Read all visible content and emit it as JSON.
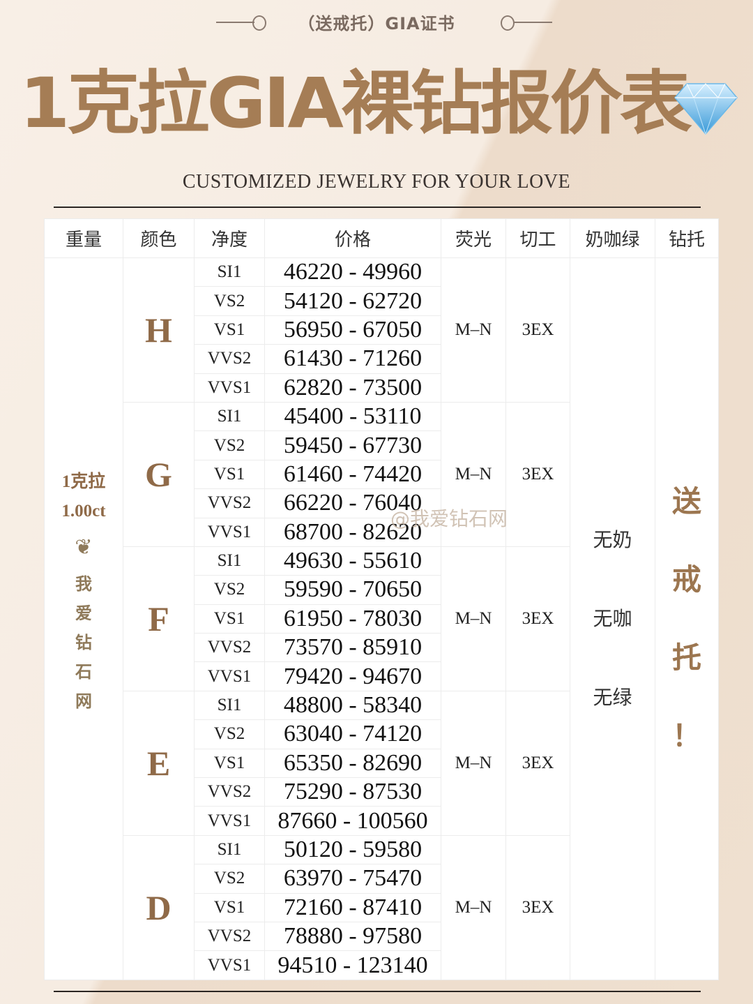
{
  "header": {
    "tagline": "（送戒托）GIA证书",
    "title": "1克拉GIA裸钻报价表",
    "subtitle": "CUSTOMIZED JEWELRY FOR YOUR LOVE"
  },
  "table": {
    "columns": [
      "重量",
      "颜色",
      "净度",
      "价格",
      "荧光",
      "切工",
      "奶咖绿",
      "钻托"
    ],
    "weight": [
      "1克拉",
      "1.00ct"
    ],
    "brand_chars": [
      "我",
      "爱",
      "钻",
      "石",
      "网"
    ],
    "milky": [
      "无奶",
      "无咖",
      "无绿"
    ],
    "setting": [
      "送",
      "戒",
      "托",
      "！"
    ],
    "groups": [
      {
        "color": "H",
        "fluorescence": "M–N",
        "cut": "3EX",
        "rows": [
          {
            "clarity": "SI1",
            "price": "46220 - 49960"
          },
          {
            "clarity": "VS2",
            "price": "54120 - 62720"
          },
          {
            "clarity": "VS1",
            "price": "56950 - 67050"
          },
          {
            "clarity": "VVS2",
            "price": "61430 - 71260"
          },
          {
            "clarity": "VVS1",
            "price": "62820 - 73500"
          }
        ]
      },
      {
        "color": "G",
        "fluorescence": "M–N",
        "cut": "3EX",
        "rows": [
          {
            "clarity": "SI1",
            "price": "45400 - 53110"
          },
          {
            "clarity": "VS2",
            "price": "59450 - 67730"
          },
          {
            "clarity": "VS1",
            "price": "61460 - 74420"
          },
          {
            "clarity": "VVS2",
            "price": "66220 - 76040"
          },
          {
            "clarity": "VVS1",
            "price": "68700 - 82620"
          }
        ]
      },
      {
        "color": "F",
        "fluorescence": "M–N",
        "cut": "3EX",
        "rows": [
          {
            "clarity": "SI1",
            "price": "49630 - 55610"
          },
          {
            "clarity": "VS2",
            "price": "59590 - 70650"
          },
          {
            "clarity": "VS1",
            "price": "61950 - 78030"
          },
          {
            "clarity": "VVS2",
            "price": "73570 - 85910"
          },
          {
            "clarity": "VVS1",
            "price": "79420 - 94670"
          }
        ]
      },
      {
        "color": "E",
        "fluorescence": "M–N",
        "cut": "3EX",
        "rows": [
          {
            "clarity": "SI1",
            "price": "48800 - 58340"
          },
          {
            "clarity": "VS2",
            "price": "63040 - 74120"
          },
          {
            "clarity": "VS1",
            "price": "65350 - 82690"
          },
          {
            "clarity": "VVS2",
            "price": "75290 - 87530"
          },
          {
            "clarity": "VVS1",
            "price": "87660 - 100560"
          }
        ]
      },
      {
        "color": "D",
        "fluorescence": "M–N",
        "cut": "3EX",
        "rows": [
          {
            "clarity": "SI1",
            "price": "50120 - 59580"
          },
          {
            "clarity": "VS2",
            "price": "63970 - 75470"
          },
          {
            "clarity": "VS1",
            "price": "72160 - 87410"
          },
          {
            "clarity": "VVS2",
            "price": "78880 - 97580"
          },
          {
            "clarity": "VVS1",
            "price": "94510 - 123140"
          }
        ]
      }
    ]
  },
  "watermark": "@我爱钻石网",
  "colors": {
    "accent": "#a57d55",
    "text": "#222222"
  }
}
